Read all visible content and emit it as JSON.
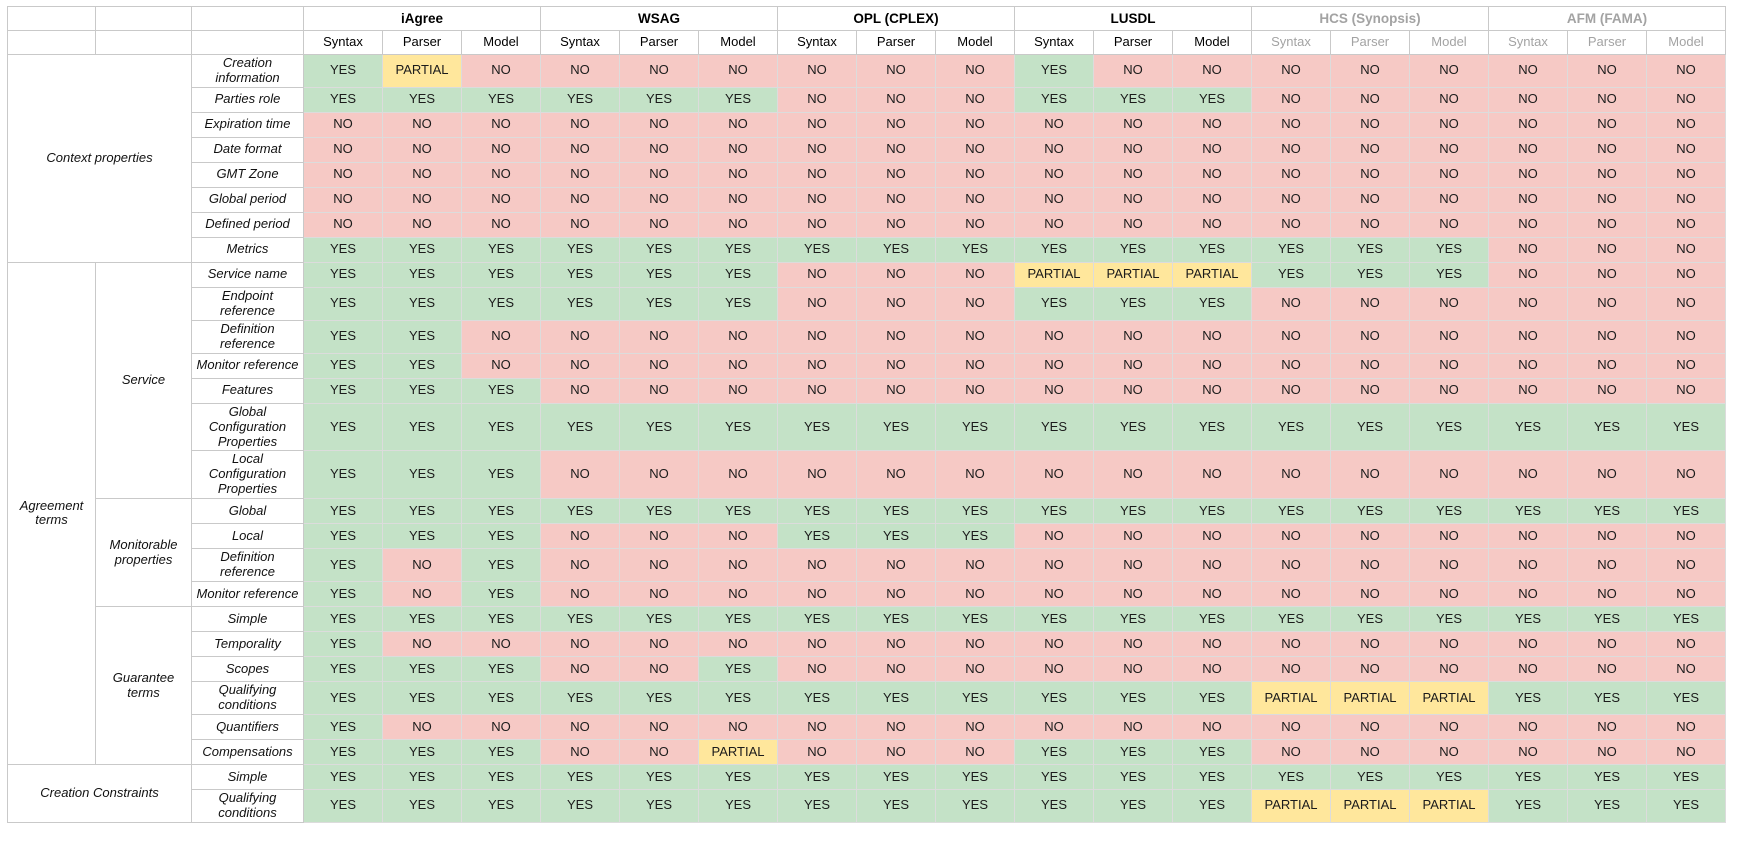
{
  "table": {
    "tools": [
      {
        "label": "iAgree",
        "muted": false
      },
      {
        "label": "WSAG",
        "muted": false
      },
      {
        "label": "OPL (CPLEX)",
        "muted": false
      },
      {
        "label": "LUSDL",
        "muted": false
      },
      {
        "label": "HCS (Synopsis)",
        "muted": true
      },
      {
        "label": "AFM (FAMA)",
        "muted": true
      }
    ],
    "subcolumns": [
      "Syntax",
      "Parser",
      "Model"
    ],
    "value_colors": {
      "YES": "#c4e2c7",
      "NO": "#f6c9c5",
      "PARTIAL": "#ffe79c",
      "muted_text": "#a3a3a3",
      "text": "#1b1b1b"
    },
    "groups": [
      {
        "label": "Context properties",
        "colspan": 2,
        "rows": [
          {
            "label": "Creation information",
            "values": [
              "YES",
              "PARTIAL",
              "NO",
              "NO",
              "NO",
              "NO",
              "NO",
              "NO",
              "NO",
              "YES",
              "NO",
              "NO",
              "NO",
              "NO",
              "NO",
              "NO",
              "NO",
              "NO"
            ]
          },
          {
            "label": "Parties role",
            "values": [
              "YES",
              "YES",
              "YES",
              "YES",
              "YES",
              "YES",
              "NO",
              "NO",
              "NO",
              "YES",
              "YES",
              "YES",
              "NO",
              "NO",
              "NO",
              "NO",
              "NO",
              "NO"
            ]
          },
          {
            "label": "Expiration time",
            "values": [
              "NO",
              "NO",
              "NO",
              "NO",
              "NO",
              "NO",
              "NO",
              "NO",
              "NO",
              "NO",
              "NO",
              "NO",
              "NO",
              "NO",
              "NO",
              "NO",
              "NO",
              "NO"
            ]
          },
          {
            "label": "Date format",
            "values": [
              "NO",
              "NO",
              "NO",
              "NO",
              "NO",
              "NO",
              "NO",
              "NO",
              "NO",
              "NO",
              "NO",
              "NO",
              "NO",
              "NO",
              "NO",
              "NO",
              "NO",
              "NO"
            ]
          },
          {
            "label": "GMT Zone",
            "values": [
              "NO",
              "NO",
              "NO",
              "NO",
              "NO",
              "NO",
              "NO",
              "NO",
              "NO",
              "NO",
              "NO",
              "NO",
              "NO",
              "NO",
              "NO",
              "NO",
              "NO",
              "NO"
            ]
          },
          {
            "label": "Global period",
            "values": [
              "NO",
              "NO",
              "NO",
              "NO",
              "NO",
              "NO",
              "NO",
              "NO",
              "NO",
              "NO",
              "NO",
              "NO",
              "NO",
              "NO",
              "NO",
              "NO",
              "NO",
              "NO"
            ]
          },
          {
            "label": "Defined period",
            "values": [
              "NO",
              "NO",
              "NO",
              "NO",
              "NO",
              "NO",
              "NO",
              "NO",
              "NO",
              "NO",
              "NO",
              "NO",
              "NO",
              "NO",
              "NO",
              "NO",
              "NO",
              "NO"
            ]
          },
          {
            "label": "Metrics",
            "values": [
              "YES",
              "YES",
              "YES",
              "YES",
              "YES",
              "YES",
              "YES",
              "YES",
              "YES",
              "YES",
              "YES",
              "YES",
              "YES",
              "YES",
              "YES",
              "NO",
              "NO",
              "NO"
            ]
          }
        ]
      },
      {
        "label": "Agreement terms",
        "colspan": 1,
        "subgroups": [
          {
            "label": "Service",
            "rows": [
              {
                "label": "Service name",
                "values": [
                  "YES",
                  "YES",
                  "YES",
                  "YES",
                  "YES",
                  "YES",
                  "NO",
                  "NO",
                  "NO",
                  "PARTIAL",
                  "PARTIAL",
                  "PARTIAL",
                  "YES",
                  "YES",
                  "YES",
                  "NO",
                  "NO",
                  "NO"
                ]
              },
              {
                "label": "Endpoint reference",
                "values": [
                  "YES",
                  "YES",
                  "YES",
                  "YES",
                  "YES",
                  "YES",
                  "NO",
                  "NO",
                  "NO",
                  "YES",
                  "YES",
                  "YES",
                  "NO",
                  "NO",
                  "NO",
                  "NO",
                  "NO",
                  "NO"
                ]
              },
              {
                "label": "Definition reference",
                "values": [
                  "YES",
                  "YES",
                  "NO",
                  "NO",
                  "NO",
                  "NO",
                  "NO",
                  "NO",
                  "NO",
                  "NO",
                  "NO",
                  "NO",
                  "NO",
                  "NO",
                  "NO",
                  "NO",
                  "NO",
                  "NO"
                ]
              },
              {
                "label": "Monitor reference",
                "values": [
                  "YES",
                  "YES",
                  "NO",
                  "NO",
                  "NO",
                  "NO",
                  "NO",
                  "NO",
                  "NO",
                  "NO",
                  "NO",
                  "NO",
                  "NO",
                  "NO",
                  "NO",
                  "NO",
                  "NO",
                  "NO"
                ]
              },
              {
                "label": "Features",
                "values": [
                  "YES",
                  "YES",
                  "YES",
                  "NO",
                  "NO",
                  "NO",
                  "NO",
                  "NO",
                  "NO",
                  "NO",
                  "NO",
                  "NO",
                  "NO",
                  "NO",
                  "NO",
                  "NO",
                  "NO",
                  "NO"
                ]
              },
              {
                "label": "Global Configuration Properties",
                "values": [
                  "YES",
                  "YES",
                  "YES",
                  "YES",
                  "YES",
                  "YES",
                  "YES",
                  "YES",
                  "YES",
                  "YES",
                  "YES",
                  "YES",
                  "YES",
                  "YES",
                  "YES",
                  "YES",
                  "YES",
                  "YES"
                ]
              },
              {
                "label": "Local Configuration Properties",
                "values": [
                  "YES",
                  "YES",
                  "YES",
                  "NO",
                  "NO",
                  "NO",
                  "NO",
                  "NO",
                  "NO",
                  "NO",
                  "NO",
                  "NO",
                  "NO",
                  "NO",
                  "NO",
                  "NO",
                  "NO",
                  "NO"
                ]
              }
            ]
          },
          {
            "label": "Monitorable properties",
            "rows": [
              {
                "label": "Global",
                "values": [
                  "YES",
                  "YES",
                  "YES",
                  "YES",
                  "YES",
                  "YES",
                  "YES",
                  "YES",
                  "YES",
                  "YES",
                  "YES",
                  "YES",
                  "YES",
                  "YES",
                  "YES",
                  "YES",
                  "YES",
                  "YES"
                ]
              },
              {
                "label": "Local",
                "values": [
                  "YES",
                  "YES",
                  "YES",
                  "NO",
                  "NO",
                  "NO",
                  "YES",
                  "YES",
                  "YES",
                  "NO",
                  "NO",
                  "NO",
                  "NO",
                  "NO",
                  "NO",
                  "NO",
                  "NO",
                  "NO"
                ]
              },
              {
                "label": "Definition reference",
                "values": [
                  "YES",
                  "NO",
                  "YES",
                  "NO",
                  "NO",
                  "NO",
                  "NO",
                  "NO",
                  "NO",
                  "NO",
                  "NO",
                  "NO",
                  "NO",
                  "NO",
                  "NO",
                  "NO",
                  "NO",
                  "NO"
                ]
              },
              {
                "label": "Monitor reference",
                "values": [
                  "YES",
                  "NO",
                  "YES",
                  "NO",
                  "NO",
                  "NO",
                  "NO",
                  "NO",
                  "NO",
                  "NO",
                  "NO",
                  "NO",
                  "NO",
                  "NO",
                  "NO",
                  "NO",
                  "NO",
                  "NO"
                ]
              }
            ]
          },
          {
            "label": "Guarantee terms",
            "rows": [
              {
                "label": "Simple",
                "values": [
                  "YES",
                  "YES",
                  "YES",
                  "YES",
                  "YES",
                  "YES",
                  "YES",
                  "YES",
                  "YES",
                  "YES",
                  "YES",
                  "YES",
                  "YES",
                  "YES",
                  "YES",
                  "YES",
                  "YES",
                  "YES"
                ]
              },
              {
                "label": "Temporality",
                "values": [
                  "YES",
                  "NO",
                  "NO",
                  "NO",
                  "NO",
                  "NO",
                  "NO",
                  "NO",
                  "NO",
                  "NO",
                  "NO",
                  "NO",
                  "NO",
                  "NO",
                  "NO",
                  "NO",
                  "NO",
                  "NO"
                ]
              },
              {
                "label": "Scopes",
                "values": [
                  "YES",
                  "YES",
                  "YES",
                  "NO",
                  "NO",
                  "YES",
                  "NO",
                  "NO",
                  "NO",
                  "NO",
                  "NO",
                  "NO",
                  "NO",
                  "NO",
                  "NO",
                  "NO",
                  "NO",
                  "NO"
                ]
              },
              {
                "label": "Qualifying conditions",
                "values": [
                  "YES",
                  "YES",
                  "YES",
                  "YES",
                  "YES",
                  "YES",
                  "YES",
                  "YES",
                  "YES",
                  "YES",
                  "YES",
                  "YES",
                  "PARTIAL",
                  "PARTIAL",
                  "PARTIAL",
                  "YES",
                  "YES",
                  "YES"
                ]
              },
              {
                "label": "Quantifiers",
                "values": [
                  "YES",
                  "NO",
                  "NO",
                  "NO",
                  "NO",
                  "NO",
                  "NO",
                  "NO",
                  "NO",
                  "NO",
                  "NO",
                  "NO",
                  "NO",
                  "NO",
                  "NO",
                  "NO",
                  "NO",
                  "NO"
                ]
              },
              {
                "label": "Compensations",
                "values": [
                  "YES",
                  "YES",
                  "YES",
                  "NO",
                  "NO",
                  "PARTIAL",
                  "NO",
                  "NO",
                  "NO",
                  "YES",
                  "YES",
                  "YES",
                  "NO",
                  "NO",
                  "NO",
                  "NO",
                  "NO",
                  "NO"
                ]
              }
            ]
          }
        ]
      },
      {
        "label": "Creation Constraints",
        "colspan": 2,
        "rows": [
          {
            "label": "Simple",
            "values": [
              "YES",
              "YES",
              "YES",
              "YES",
              "YES",
              "YES",
              "YES",
              "YES",
              "YES",
              "YES",
              "YES",
              "YES",
              "YES",
              "YES",
              "YES",
              "YES",
              "YES",
              "YES"
            ]
          },
          {
            "label": "Qualifying conditions",
            "values": [
              "YES",
              "YES",
              "YES",
              "YES",
              "YES",
              "YES",
              "YES",
              "YES",
              "YES",
              "YES",
              "YES",
              "YES",
              "PARTIAL",
              "PARTIAL",
              "PARTIAL",
              "YES",
              "YES",
              "YES"
            ]
          }
        ]
      }
    ]
  }
}
